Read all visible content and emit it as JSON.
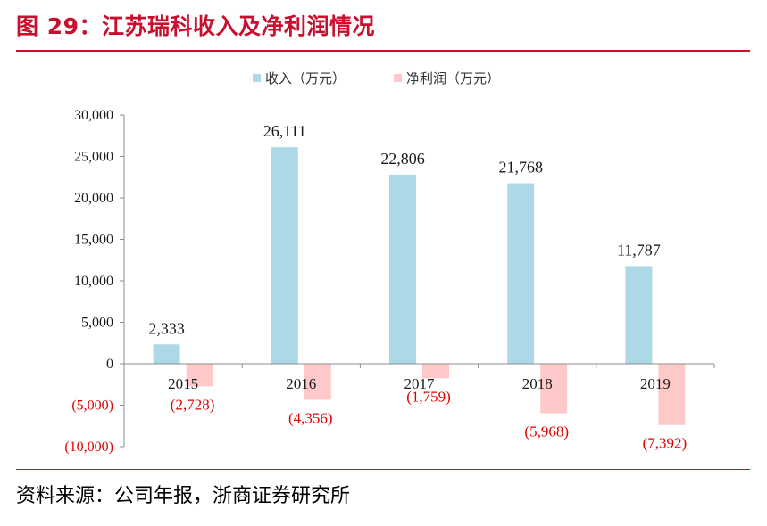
{
  "figure_title": "图 29：江苏瑞科收入及净利润情况",
  "source_note": "资料来源：公司年报，浙商证券研究所",
  "colors": {
    "revenue": "#add8e6",
    "profit": "#ffc9c9",
    "title": "#c8102e",
    "negative_label": "#e00000"
  },
  "chart_data": {
    "type": "bar",
    "categories": [
      "2015",
      "2016",
      "2017",
      "2018",
      "2019"
    ],
    "series": [
      {
        "name": "收入（万元）",
        "values": [
          2333,
          26111,
          22806,
          21768,
          11787
        ],
        "labels": [
          "2,333",
          "26,111",
          "22,806",
          "21,768",
          "11,787"
        ]
      },
      {
        "name": "净利润（万元）",
        "values": [
          -2728,
          -4356,
          -1759,
          -5968,
          -7392
        ],
        "labels": [
          "(2,728)",
          "(4,356)",
          "(1,759)",
          "(5,968)",
          "(7,392)"
        ]
      }
    ],
    "ylim": [
      -10000,
      30000
    ],
    "yticks": [
      30000,
      25000,
      20000,
      15000,
      10000,
      5000,
      0,
      -5000,
      -10000
    ],
    "ytick_labels": [
      "30,000",
      "25,000",
      "20,000",
      "15,000",
      "10,000",
      "5,000",
      "0",
      "(5,000)",
      "(10,000)"
    ],
    "legend_position": "top-center",
    "grid": false
  }
}
